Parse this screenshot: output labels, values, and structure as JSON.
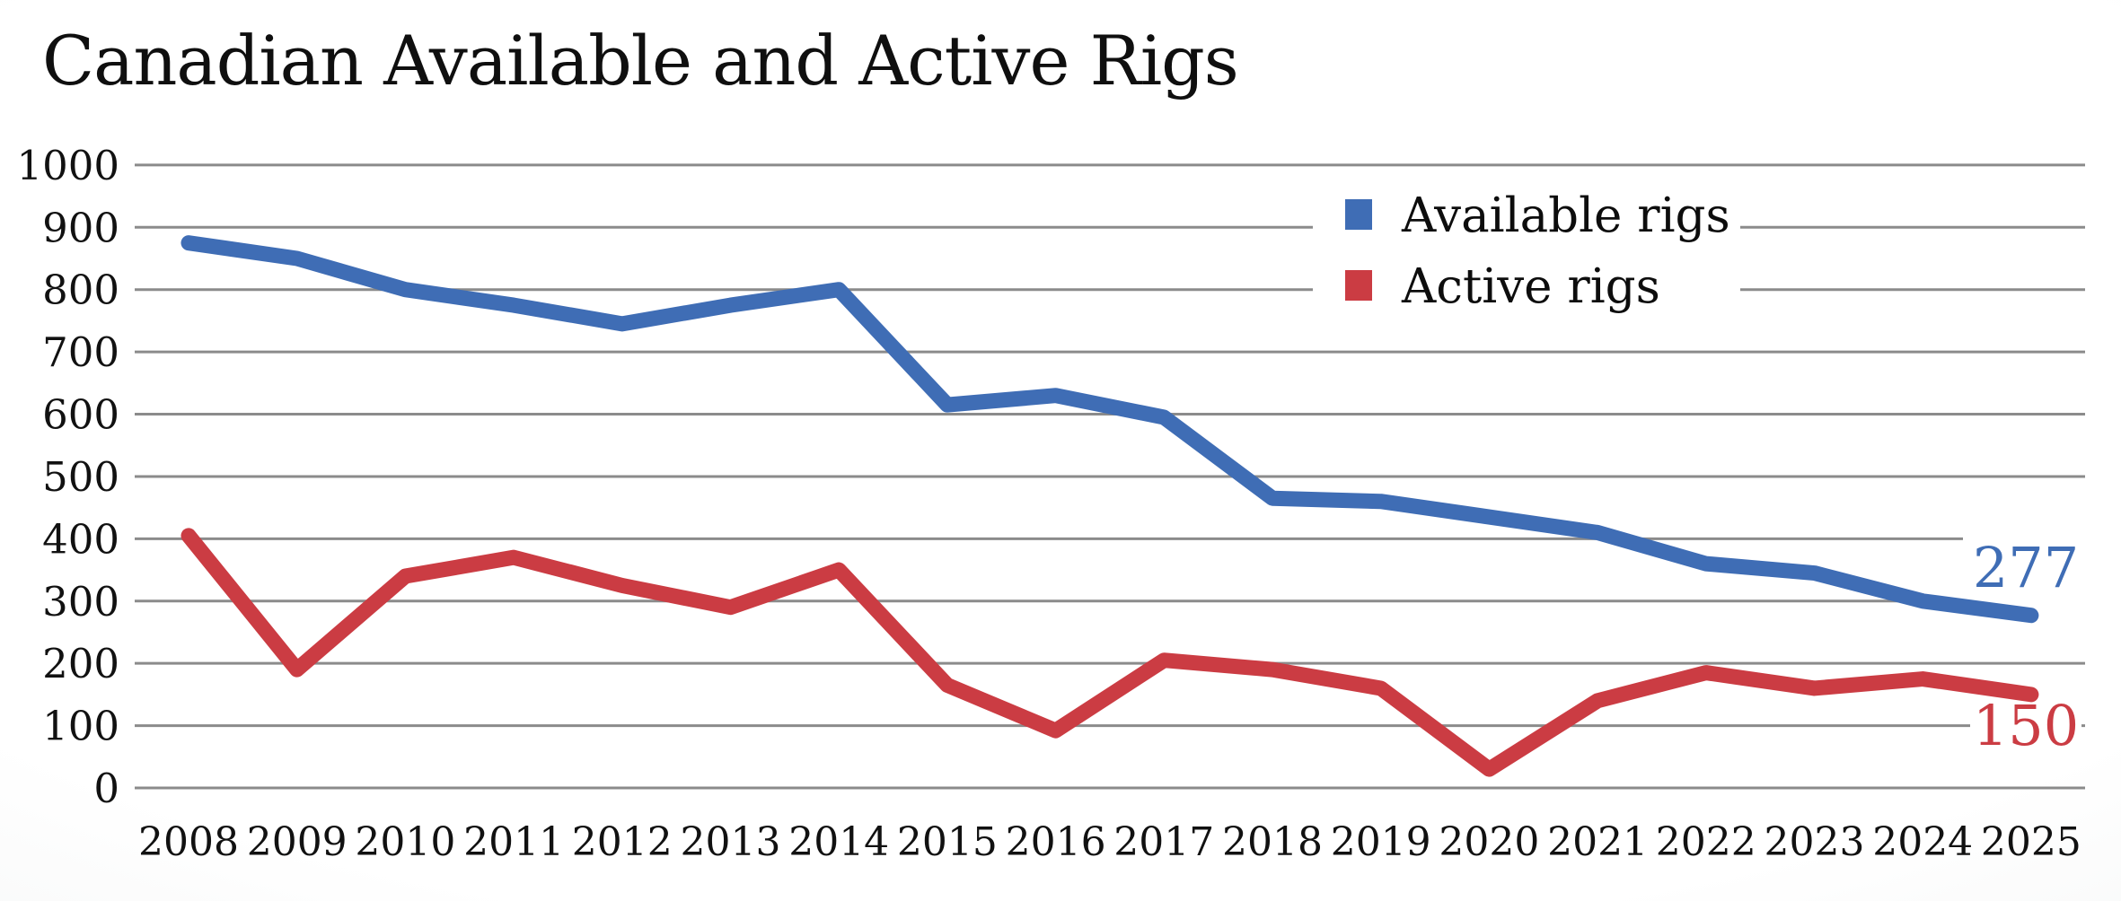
{
  "page": {
    "title": "Canadian Available and Active Rigs"
  },
  "chart_data": {
    "type": "line",
    "title": "Canadian Available and Active Rigs",
    "x": [
      "2008",
      "2009",
      "2010",
      "2011",
      "2012",
      "2013",
      "2014",
      "2015",
      "2016",
      "2017",
      "2018",
      "2019",
      "2020",
      "2021",
      "2022",
      "2023",
      "2024",
      "2025"
    ],
    "series": [
      {
        "name": "Available rigs",
        "color": "#3f6db5",
        "values": [
          875,
          850,
          800,
          775,
          745,
          775,
          800,
          615,
          630,
          595,
          465,
          460,
          435,
          410,
          360,
          345,
          300,
          277
        ],
        "end_label": "277"
      },
      {
        "name": "Active rigs",
        "color": "#cb3c43",
        "values": [
          405,
          190,
          340,
          370,
          325,
          290,
          350,
          165,
          92,
          205,
          190,
          160,
          30,
          140,
          185,
          160,
          175,
          150
        ],
        "end_label": "150"
      }
    ],
    "xlabel": "",
    "ylabel": "",
    "ylim": [
      0,
      1000
    ],
    "ytick_step": 100,
    "yticks": [
      "0",
      "100",
      "200",
      "300",
      "400",
      "500",
      "600",
      "700",
      "800",
      "900",
      "1000"
    ],
    "grid": "horizontal only",
    "grid_color": "#8b8b8b",
    "legend_position": "top-right inside plot, white backing",
    "text_color": "#0f0f0f",
    "background": "white with light gray vignette"
  }
}
